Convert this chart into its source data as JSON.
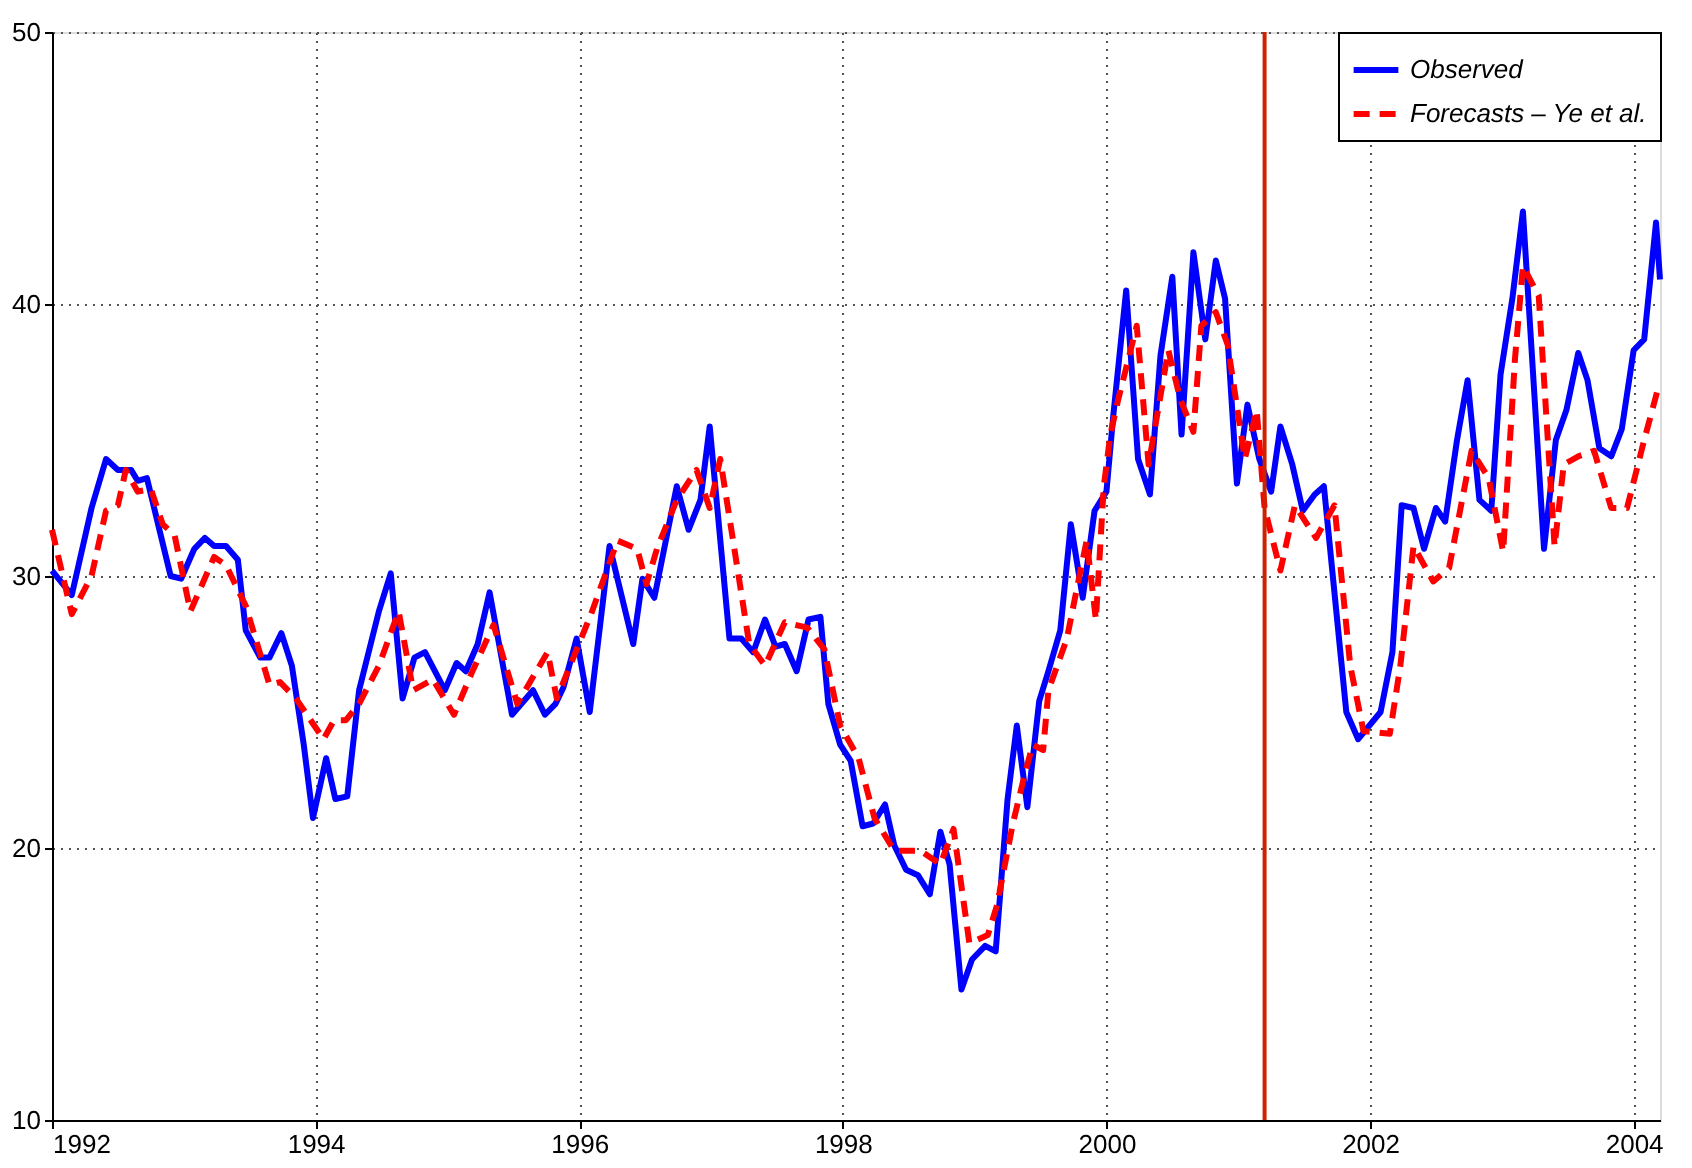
{
  "chart_data": {
    "type": "line",
    "xlim": [
      1992,
      2004.2
    ],
    "xticks": [
      1992,
      1994,
      1996,
      1998,
      2000,
      2002,
      2004
    ],
    "ylim": [
      10,
      50
    ],
    "yticks": [
      10,
      20,
      30,
      40,
      50
    ],
    "grid": true,
    "legend": "top right",
    "series": [
      {
        "name": "Observed",
        "color": "#0000ff",
        "line_style": "solid",
        "x": [
          1992.0,
          1992.15,
          1992.3,
          1992.41,
          1992.5,
          1992.6,
          1992.65,
          1992.72,
          1992.9,
          1992.98,
          1993.08,
          1993.16,
          1993.23,
          1993.32,
          1993.41,
          1993.47,
          1993.58,
          1993.65,
          1993.74,
          1993.82,
          1993.91,
          1993.98,
          1994.08,
          1994.15,
          1994.24,
          1994.33,
          1994.48,
          1994.57,
          1994.66,
          1994.75,
          1994.83,
          1994.98,
          1995.07,
          1995.14,
          1995.23,
          1995.32,
          1995.49,
          1995.65,
          1995.74,
          1995.82,
          1995.88,
          1995.98,
          1996.08,
          1996.23,
          1996.41,
          1996.48,
          1996.57,
          1996.74,
          1996.83,
          1996.92,
          1996.99,
          1997.14,
          1997.23,
          1997.32,
          1997.41,
          1997.49,
          1997.56,
          1997.65,
          1997.74,
          1997.83,
          1997.89,
          1997.98,
          1998.06,
          1998.15,
          1998.23,
          1998.32,
          1998.39,
          1998.48,
          1998.57,
          1998.66,
          1998.74,
          1998.81,
          1998.9,
          1998.98,
          1999.08,
          1999.16,
          1999.25,
          1999.32,
          1999.4,
          1999.49,
          1999.56,
          1999.65,
          1999.73,
          1999.82,
          1999.91,
          2000.0,
          2000.05,
          2000.15,
          2000.24,
          2000.33,
          2000.41,
          2000.5,
          2000.57,
          2000.66,
          2000.75,
          2000.83,
          2000.9,
          2000.99,
          2001.07,
          2001.16,
          2001.25,
          2001.32,
          2001.41,
          2001.49,
          2001.58,
          2001.65,
          2001.74,
          2001.82,
          2001.91,
          2002.08,
          2002.17,
          2002.24,
          2002.33,
          2002.41,
          2002.5,
          2002.57,
          2002.66,
          2002.74,
          2002.83,
          2002.92,
          2002.99,
          2003.08,
          2003.16,
          2003.32,
          2003.41,
          2003.49,
          2003.58,
          2003.65,
          2003.74,
          2003.83,
          2003.91,
          2004.0,
          2004.08,
          2004.17,
          2004.2
        ],
        "values": [
          30.2,
          29.3,
          32.5,
          34.3,
          33.9,
          33.9,
          33.5,
          33.6,
          30.0,
          29.9,
          31.0,
          31.4,
          31.1,
          31.1,
          30.6,
          28.0,
          27.0,
          27.0,
          27.9,
          26.7,
          23.8,
          21.1,
          23.3,
          21.8,
          21.9,
          25.8,
          28.7,
          30.1,
          25.5,
          27.0,
          27.2,
          25.8,
          26.8,
          26.5,
          27.5,
          29.4,
          24.9,
          25.8,
          24.9,
          25.3,
          25.9,
          27.7,
          25.0,
          31.1,
          27.5,
          29.9,
          29.2,
          33.3,
          31.7,
          32.8,
          35.5,
          27.7,
          27.7,
          27.2,
          28.4,
          27.4,
          27.5,
          26.5,
          28.4,
          28.5,
          25.3,
          23.8,
          23.2,
          20.8,
          20.9,
          21.6,
          20.1,
          19.2,
          19.0,
          18.3,
          20.6,
          19.4,
          14.8,
          15.9,
          16.4,
          16.2,
          21.8,
          24.5,
          21.5,
          25.4,
          26.5,
          28.0,
          31.9,
          29.2,
          32.4,
          33.1,
          35.8,
          40.5,
          34.3,
          33.0,
          38.1,
          41.0,
          35.2,
          41.9,
          38.7,
          41.6,
          40.2,
          33.4,
          36.3,
          34.3,
          33.1,
          35.5,
          34.1,
          32.4,
          33.0,
          33.3,
          28.9,
          25.0,
          24.0,
          25.0,
          27.2,
          32.6,
          32.5,
          31.0,
          32.5,
          32.0,
          35.0,
          37.2,
          32.8,
          32.4,
          37.4,
          40.2,
          43.4,
          31.0,
          35.0,
          36.1,
          38.2,
          37.2,
          34.7,
          34.4,
          35.4,
          38.3,
          38.7,
          43.0,
          40.9
        ]
      },
      {
        "name": "Forecasts – Ye et al.",
        "color": "#ff0000",
        "line_style": "dashed",
        "x": [
          1992.0,
          1992.15,
          1992.3,
          1992.41,
          1992.5,
          1992.56,
          1992.65,
          1992.75,
          1992.84,
          1992.93,
          1993.05,
          1993.23,
          1993.32,
          1993.47,
          1993.65,
          1993.73,
          1993.85,
          1994.06,
          1994.14,
          1994.23,
          1994.33,
          1994.48,
          1994.63,
          1994.74,
          1994.89,
          1995.05,
          1995.19,
          1995.35,
          1995.53,
          1995.76,
          1995.83,
          1996.09,
          1996.29,
          1996.44,
          1996.51,
          1996.59,
          1996.74,
          1996.89,
          1996.99,
          1997.07,
          1997.19,
          1997.29,
          1997.41,
          1997.56,
          1997.73,
          1997.86,
          1997.98,
          1998.12,
          1998.24,
          1998.39,
          1998.59,
          1998.74,
          1998.84,
          1998.96,
          1999.1,
          1999.17,
          1999.29,
          1999.37,
          1999.44,
          1999.52,
          1999.56,
          1999.7,
          1999.77,
          1999.85,
          1999.92,
          1999.98,
          2000.03,
          2000.09,
          2000.23,
          2000.32,
          2000.47,
          2000.56,
          2000.66,
          2000.72,
          2000.83,
          2000.92,
          2001.05,
          2001.14,
          2001.2,
          2001.32,
          2001.43,
          2001.59,
          2001.73,
          2001.85,
          2001.95,
          2002.15,
          2002.23,
          2002.33,
          2002.48,
          2002.6,
          2002.77,
          2002.9,
          2003.01,
          2003.1,
          2003.16,
          2003.28,
          2003.4,
          2003.47,
          2003.58,
          2003.7,
          2003.83,
          2003.95,
          2004.08,
          2004.18
        ],
        "values": [
          31.7,
          28.6,
          30.0,
          32.4,
          32.6,
          33.9,
          33.1,
          33.2,
          31.9,
          31.5,
          28.7,
          30.7,
          30.4,
          28.9,
          26.0,
          26.1,
          25.5,
          24.0,
          24.7,
          24.7,
          25.3,
          26.7,
          28.7,
          25.8,
          26.2,
          24.9,
          26.5,
          28.2,
          25.3,
          27.2,
          25.5,
          28.6,
          31.3,
          31.0,
          29.7,
          31.0,
          32.8,
          33.9,
          32.5,
          34.3,
          30.6,
          27.5,
          26.7,
          28.3,
          28.1,
          27.3,
          24.5,
          23.3,
          21.1,
          19.9,
          19.9,
          19.4,
          20.7,
          16.5,
          16.8,
          17.9,
          20.9,
          22.5,
          23.8,
          23.6,
          25.8,
          27.7,
          29.4,
          31.3,
          28.4,
          33.3,
          35.2,
          36.5,
          39.2,
          34.1,
          38.3,
          36.5,
          35.3,
          39.2,
          39.7,
          38.5,
          34.3,
          36.1,
          32.5,
          30.2,
          32.6,
          31.4,
          32.6,
          26.7,
          24.3,
          24.2,
          26.7,
          31.1,
          29.8,
          30.3,
          34.6,
          33.6,
          30.9,
          38.0,
          41.4,
          40.3,
          31.1,
          34.1,
          34.4,
          34.6,
          32.5,
          32.5,
          35.0,
          36.8
        ]
      }
    ],
    "ref_lines": [
      {
        "axis": "x",
        "value": 2001.2,
        "color": "#cc2200",
        "line_style": "solid"
      }
    ]
  }
}
